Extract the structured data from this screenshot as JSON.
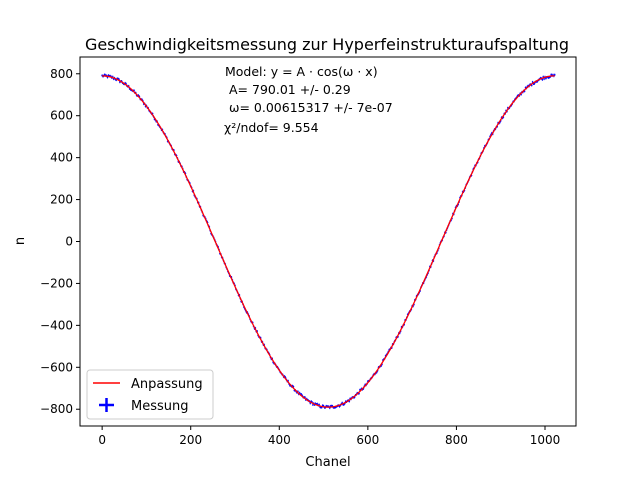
{
  "chart_data": {
    "type": "line",
    "title": "Geschwindigkeitsmessung zur Hyperfeinstrukturaufspaltung",
    "xlabel": "Chanel",
    "ylabel": "n",
    "xlim": [
      -50,
      1070
    ],
    "ylim": [
      -880,
      880
    ],
    "xticks": [
      0,
      200,
      400,
      600,
      800,
      1000
    ],
    "yticks": [
      -800,
      -600,
      -400,
      -200,
      0,
      200,
      400,
      600,
      800
    ],
    "xtick_labels": [
      "0",
      "200",
      "400",
      "600",
      "800",
      "1000"
    ],
    "ytick_labels": [
      "−800",
      "−600",
      "−400",
      "−200",
      "0",
      "200",
      "400",
      "600",
      "800"
    ],
    "grid": false,
    "legend_position": "lower-left",
    "annotation": {
      "line1": "Model: y = A · cos(ω · x)",
      "line2": "A= 790.01 +/- 0.29",
      "line3": "ω= 0.00615317 +/- 7e-07",
      "line4": "χ²/ndof= 9.554"
    },
    "model": {
      "A": 790.01,
      "omega": 0.00615317,
      "x_range": [
        0,
        1023
      ]
    },
    "series": [
      {
        "name": "Anpassung",
        "kind": "line",
        "color": "#ff0000"
      },
      {
        "name": "Messung",
        "kind": "errorbar-points",
        "color": "#0000ff",
        "x_range": [
          0,
          1023
        ]
      }
    ]
  }
}
